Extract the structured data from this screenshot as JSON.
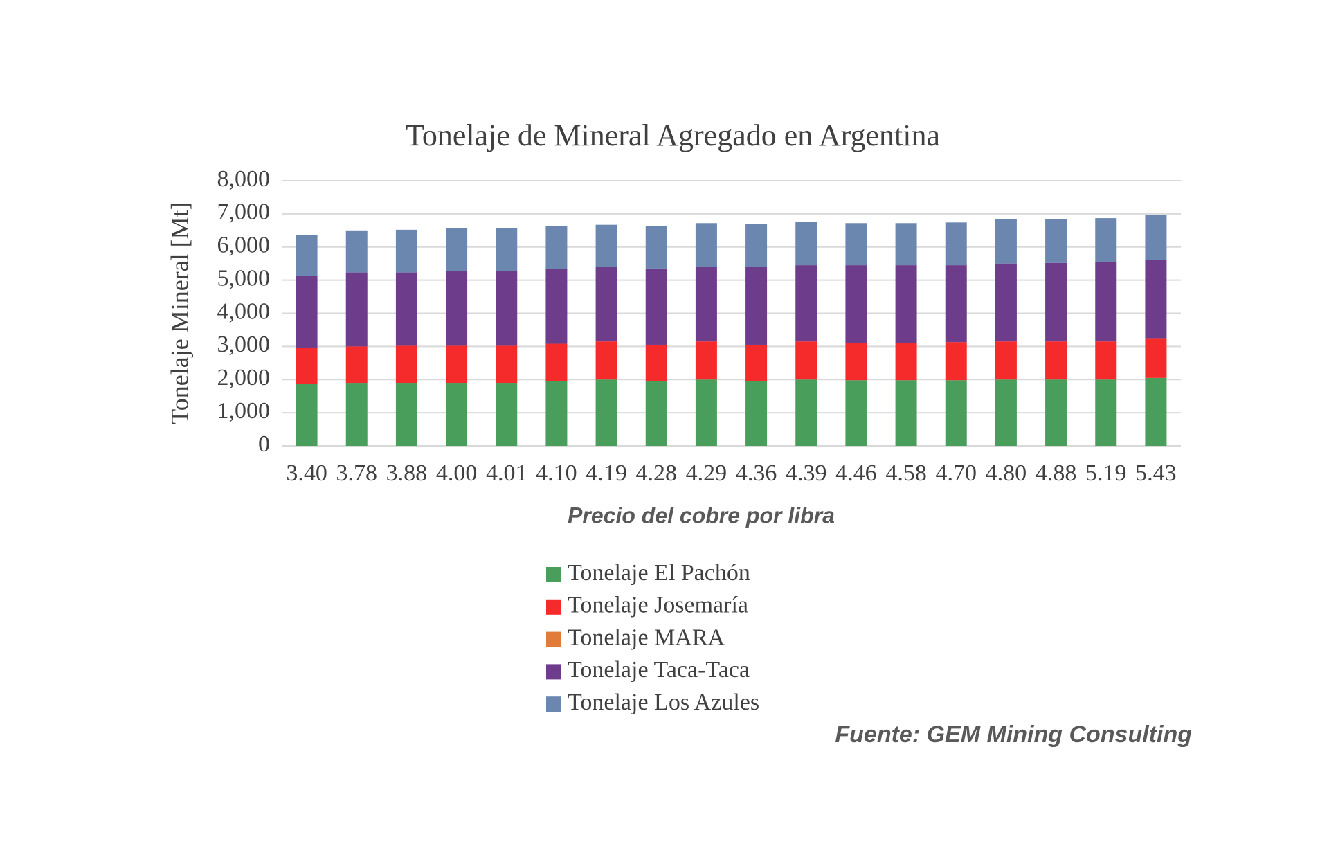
{
  "chart_data": {
    "type": "stacked_bar",
    "title": "Tonelaje de Mineral Agregado en Argentina",
    "y_label": "Tonelaje  Mineral [Mt]",
    "x_label": "Precio del cobre por libra",
    "source": "Fuente: GEM Mining Consulting",
    "categories": [
      "3.40",
      "3.78",
      "3.88",
      "4.00",
      "4.01",
      "4.10",
      "4.19",
      "4.28",
      "4.29",
      "4.36",
      "4.39",
      "4.46",
      "4.58",
      "4.70",
      "4.80",
      "4.88",
      "5.19",
      "5.43"
    ],
    "series": [
      {
        "name": "Tonelaje El Pachón",
        "color": "#4a9e5c",
        "values": [
          1870,
          1900,
          1900,
          1900,
          1900,
          1950,
          2000,
          1950,
          2000,
          1950,
          2000,
          1980,
          1980,
          1980,
          2000,
          2000,
          2000,
          2050
        ]
      },
      {
        "name": "Tonelaje Josemaría",
        "color": "#f52a2a",
        "values": [
          1080,
          1100,
          1120,
          1120,
          1120,
          1130,
          1150,
          1100,
          1150,
          1100,
          1150,
          1120,
          1120,
          1150,
          1150,
          1150,
          1150,
          1200
        ]
      },
      {
        "name": "Tonelaje MARA",
        "color": "#e07b39",
        "values": [
          0,
          0,
          0,
          0,
          0,
          0,
          0,
          0,
          0,
          0,
          0,
          0,
          0,
          0,
          0,
          0,
          0,
          0
        ]
      },
      {
        "name": "Tonelaje Taca-Taca",
        "color": "#6d3d8c",
        "values": [
          2180,
          2230,
          2210,
          2260,
          2260,
          2250,
          2250,
          2300,
          2250,
          2350,
          2300,
          2350,
          2350,
          2320,
          2350,
          2370,
          2390,
          2350
        ]
      },
      {
        "name": "Tonelaje Los Azules",
        "color": "#6b87b0",
        "values": [
          1240,
          1270,
          1290,
          1280,
          1280,
          1310,
          1270,
          1290,
          1320,
          1300,
          1300,
          1270,
          1270,
          1290,
          1350,
          1330,
          1330,
          1370
        ]
      }
    ],
    "ylim": [
      0,
      8000
    ],
    "yticks": [
      0,
      {
        "value": 1000,
        "label": "1,000"
      },
      {
        "value": 2000,
        "label": "2,000"
      },
      {
        "value": 3000,
        "label": "3,000"
      },
      {
        "value": 4000,
        "label": "4,000"
      },
      {
        "value": 5000,
        "label": "5,000"
      },
      {
        "value": 6000,
        "label": "6,000"
      },
      {
        "value": 7000,
        "label": "7,000"
      },
      {
        "value": 8000,
        "label": "8,000"
      }
    ],
    "grid": true
  }
}
